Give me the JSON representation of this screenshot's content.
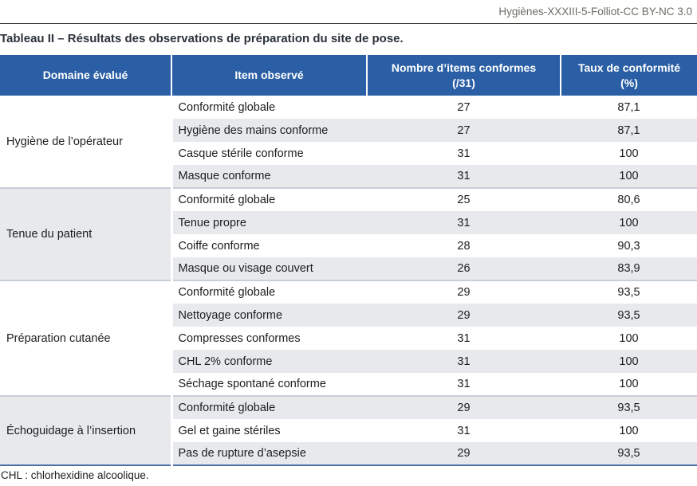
{
  "journal_caption": "Hygiènes-XXXIII-5-Folliot-CC BY-NC 3.0",
  "title": "Tableau II – Résultats des observations de préparation du site de pose.",
  "footnote": "CHL : chlorhexidine alcoolique.",
  "colors": {
    "header_bg": "#2a5fa5",
    "header_text": "#ffffff",
    "row_shade": "#e7e9ec",
    "group_divider": "#c9cfd7",
    "bottom_rule": "#4a70a7",
    "top_rule": "#45423c",
    "caption_text": "#6e6c65"
  },
  "table": {
    "headers": [
      "Domaine évalué",
      "Item observé",
      "Nombre d’items conformes\n(/31)",
      "Taux de conformité\n(%)"
    ],
    "groups": [
      {
        "domain": "Hygiène de l’opérateur",
        "rows": [
          {
            "item": "Conformité globale",
            "n": "27",
            "taux": "87,1"
          },
          {
            "item": "Hygiène des mains conforme",
            "n": "27",
            "taux": "87,1"
          },
          {
            "item": "Casque stérile conforme",
            "n": "31",
            "taux": "100"
          },
          {
            "item": "Masque conforme",
            "n": "31",
            "taux": "100"
          }
        ]
      },
      {
        "domain": "Tenue du patient",
        "rows": [
          {
            "item": "Conformité globale",
            "n": "25",
            "taux": "80,6"
          },
          {
            "item": "Tenue propre",
            "n": "31",
            "taux": "100"
          },
          {
            "item": "Coiffe conforme",
            "n": "28",
            "taux": "90,3"
          },
          {
            "item": "Masque ou visage couvert",
            "n": "26",
            "taux": "83,9"
          }
        ]
      },
      {
        "domain": "Préparation cutanée",
        "rows": [
          {
            "item": "Conformité globale",
            "n": "29",
            "taux": "93,5"
          },
          {
            "item": "Nettoyage conforme",
            "n": "29",
            "taux": "93,5"
          },
          {
            "item": "Compresses conformes",
            "n": "31",
            "taux": "100"
          },
          {
            "item": "CHL 2% conforme",
            "n": "31",
            "taux": "100"
          },
          {
            "item": "Séchage spontané conforme",
            "n": "31",
            "taux": "100"
          }
        ]
      },
      {
        "domain": "Échoguidage à l’insertion",
        "rows": [
          {
            "item": "Conformité globale",
            "n": "29",
            "taux": "93,5"
          },
          {
            "item": "Gel et gaine stériles",
            "n": "31",
            "taux": "100"
          },
          {
            "item": "Pas de rupture d’asepsie",
            "n": "29",
            "taux": "93,5"
          }
        ]
      }
    ]
  }
}
